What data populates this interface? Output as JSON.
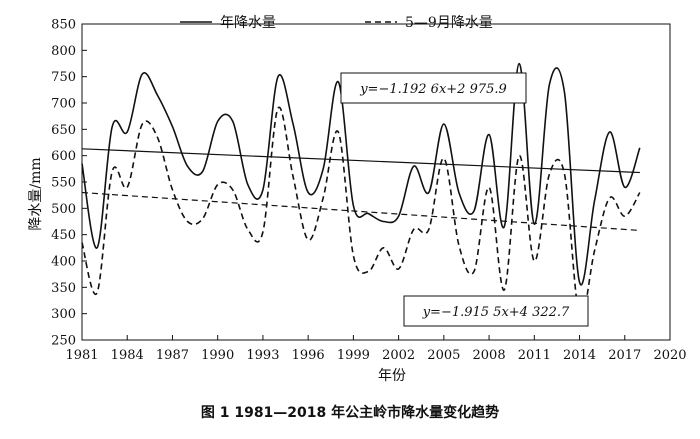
{
  "caption": "图 1   1981—2018 年公主岭市降水量变化趋势",
  "chart_data": {
    "type": "line",
    "xlabel": "年份",
    "ylabel": "降水量/mm",
    "xlim": [
      1981,
      2020
    ],
    "ylim": [
      250,
      850
    ],
    "xticks": [
      1981,
      1984,
      1987,
      1990,
      1993,
      1996,
      1999,
      2002,
      2005,
      2008,
      2011,
      2014,
      2017,
      2020
    ],
    "yticks": [
      250,
      300,
      350,
      400,
      450,
      500,
      550,
      600,
      650,
      700,
      750,
      800,
      850
    ],
    "legend_position": "top",
    "x": [
      1981,
      1982,
      1983,
      1984,
      1985,
      1986,
      1987,
      1988,
      1989,
      1990,
      1991,
      1992,
      1993,
      1994,
      1995,
      1996,
      1997,
      1998,
      1999,
      2000,
      2001,
      2002,
      2003,
      2004,
      2005,
      2006,
      2007,
      2008,
      2009,
      2010,
      2011,
      2012,
      2013,
      2014,
      2015,
      2016,
      2017,
      2018
    ],
    "series": [
      {
        "name": "年降水量",
        "style": "solid",
        "values": [
          585,
          425,
          655,
          645,
          755,
          715,
          655,
          580,
          570,
          665,
          665,
          545,
          535,
          750,
          660,
          530,
          575,
          740,
          505,
          490,
          475,
          485,
          580,
          530,
          660,
          530,
          495,
          640,
          465,
          775,
          470,
          735,
          720,
          360,
          515,
          645,
          540,
          615
        ],
        "trend": {
          "label": "y=−1.192 6x+2 975.9",
          "start": 613,
          "end": 568
        }
      },
      {
        "name": "5—9月降水量",
        "style": "dashed",
        "values": [
          435,
          340,
          570,
          540,
          660,
          635,
          535,
          475,
          480,
          545,
          535,
          460,
          455,
          690,
          560,
          440,
          520,
          645,
          410,
          380,
          425,
          385,
          460,
          460,
          595,
          430,
          380,
          540,
          345,
          600,
          400,
          565,
          565,
          295,
          420,
          520,
          485,
          530
        ],
        "trend": {
          "label": "y=−1.915 5x+4 322.7",
          "start": 530,
          "end": 458
        }
      }
    ]
  }
}
